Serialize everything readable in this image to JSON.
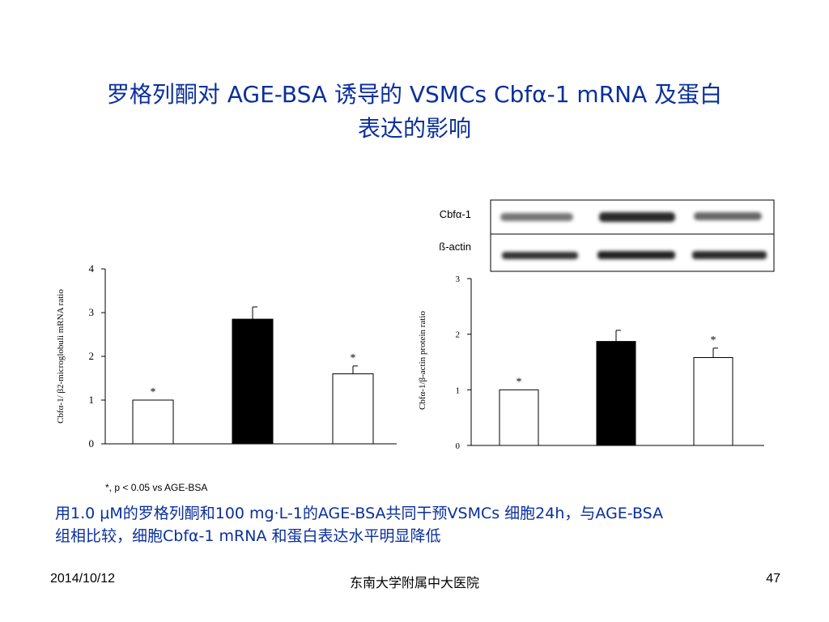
{
  "slide": {
    "title_line1": "罗格列酮对 AGE-BSA 诱导的 VSMCs Cbfα-1 mRNA 及蛋白",
    "title_line2": "表达的影响",
    "significance_note": "*, p < 0.05 vs AGE-BSA",
    "description_line1": "用1.0 μM的罗格列酮和100 mg·L-1的AGE-BSA共同干预VSMCs 细胞24h，与AGE-BSA",
    "description_line2": "组相比较，细胞Cbfα-1 mRNA 和蛋白表达水平明显降低",
    "footer_date": "2014/10/12",
    "footer_org": "东南大学附属中大医院",
    "footer_page": "47"
  },
  "blot": {
    "labels": [
      "Cbfα-1",
      "ß-actin"
    ]
  },
  "colors": {
    "title": "#0a2f9c",
    "bar_black": "#000000",
    "bar_white": "#ffffff"
  },
  "chart_data": [
    {
      "type": "bar",
      "ylabel": "Cbfα-1/ β2-microglobuli mRNA ratio",
      "xlabel": "",
      "ylim": [
        0,
        4
      ],
      "yticks": [
        "0",
        "1",
        "2",
        "3",
        "4"
      ],
      "categories": [
        "",
        "",
        ""
      ],
      "values": [
        1.0,
        2.85,
        1.6
      ],
      "errors": [
        0,
        0.28,
        0.18
      ],
      "fill": [
        "white",
        "black",
        "white"
      ],
      "annotations": [
        "*",
        "",
        "*"
      ]
    },
    {
      "type": "bar",
      "ylabel": "Cbfα-1/β-actin protein ratio",
      "xlabel": "",
      "ylim": [
        0,
        3
      ],
      "yticks": [
        "0",
        "1",
        "2",
        "3"
      ],
      "categories": [
        "",
        "",
        ""
      ],
      "values": [
        1.0,
        1.87,
        1.58
      ],
      "errors": [
        0,
        0.2,
        0.17
      ],
      "fill": [
        "white",
        "black",
        "white"
      ],
      "annotations": [
        "*",
        "",
        "*"
      ]
    }
  ]
}
